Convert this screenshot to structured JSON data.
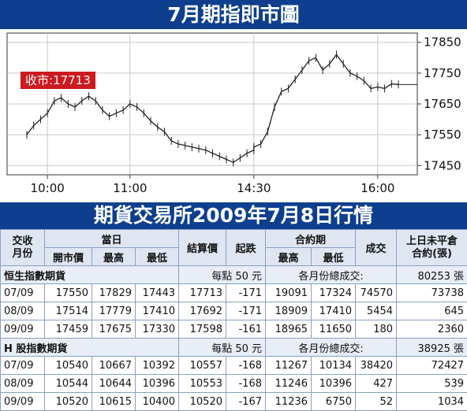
{
  "title": "7月期指即市圖",
  "subtitle": "期貨交易所2009年7月8日行情",
  "badge": "收市:17713",
  "chart_data": {
    "type": "line",
    "title": "7月期指即市圖",
    "x_ticks": [
      "10:00",
      "11:00",
      "14:30",
      "16:00"
    ],
    "y_ticks": [
      17850,
      17750,
      17650,
      17550,
      17450
    ],
    "ylim": [
      17420,
      17880
    ],
    "close": 17713,
    "series": [
      {
        "name": "",
        "values": [
          {
            "t": "09:45",
            "v": 17550
          },
          {
            "t": "09:50",
            "v": 17580
          },
          {
            "t": "09:55",
            "v": 17600
          },
          {
            "t": "10:00",
            "v": 17620
          },
          {
            "t": "10:05",
            "v": 17660
          },
          {
            "t": "10:10",
            "v": 17670
          },
          {
            "t": "10:15",
            "v": 17650
          },
          {
            "t": "10:20",
            "v": 17640
          },
          {
            "t": "10:25",
            "v": 17660
          },
          {
            "t": "10:30",
            "v": 17675
          },
          {
            "t": "10:35",
            "v": 17660
          },
          {
            "t": "10:40",
            "v": 17630
          },
          {
            "t": "10:45",
            "v": 17610
          },
          {
            "t": "10:50",
            "v": 17620
          },
          {
            "t": "10:55",
            "v": 17630
          },
          {
            "t": "11:00",
            "v": 17650
          },
          {
            "t": "11:05",
            "v": 17640
          },
          {
            "t": "11:10",
            "v": 17620
          },
          {
            "t": "11:15",
            "v": 17595
          },
          {
            "t": "11:20",
            "v": 17575
          },
          {
            "t": "11:25",
            "v": 17560
          },
          {
            "t": "11:30",
            "v": 17530
          },
          {
            "t": "11:35",
            "v": 17520
          },
          {
            "t": "11:40",
            "v": 17515
          },
          {
            "t": "11:45",
            "v": 17510
          },
          {
            "t": "11:50",
            "v": 17505
          },
          {
            "t": "11:55",
            "v": 17500
          },
          {
            "t": "12:00",
            "v": 17490
          },
          {
            "t": "12:05",
            "v": 17480
          },
          {
            "t": "12:10",
            "v": 17470
          },
          {
            "t": "12:15",
            "v": 17460
          },
          {
            "t": "12:20",
            "v": 17475
          },
          {
            "t": "12:25",
            "v": 17490
          },
          {
            "t": "12:30",
            "v": 17500
          },
          {
            "t": "14:30",
            "v": 17510
          },
          {
            "t": "14:35",
            "v": 17520
          },
          {
            "t": "14:40",
            "v": 17560
          },
          {
            "t": "14:45",
            "v": 17640
          },
          {
            "t": "14:50",
            "v": 17690
          },
          {
            "t": "14:55",
            "v": 17700
          },
          {
            "t": "15:00",
            "v": 17730
          },
          {
            "t": "15:05",
            "v": 17760
          },
          {
            "t": "15:10",
            "v": 17790
          },
          {
            "t": "15:15",
            "v": 17800
          },
          {
            "t": "15:20",
            "v": 17760
          },
          {
            "t": "15:25",
            "v": 17780
          },
          {
            "t": "15:30",
            "v": 17810
          },
          {
            "t": "15:35",
            "v": 17780
          },
          {
            "t": "15:40",
            "v": 17750
          },
          {
            "t": "15:45",
            "v": 17740
          },
          {
            "t": "15:50",
            "v": 17725
          },
          {
            "t": "15:55",
            "v": 17700
          },
          {
            "t": "16:00",
            "v": 17705
          },
          {
            "t": "16:05",
            "v": 17700
          },
          {
            "t": "16:10",
            "v": 17715
          },
          {
            "t": "16:15",
            "v": 17713
          }
        ]
      }
    ]
  },
  "table": {
    "head": {
      "col1": "交收\n月份",
      "group_day": "當日",
      "group_contract": "合約期",
      "settle": "結算價",
      "change": "起跌",
      "volume": "成交",
      "open_int": "上日未平倉\n合約(張)",
      "open": "開市價",
      "high": "最高",
      "low": "最低",
      "c_high": "最高",
      "c_low": "最低"
    },
    "groups": [
      {
        "name": "恒生指數期貨",
        "unit": "每點 50 元",
        "total_label": "各月份總成交:",
        "total": "80253 張",
        "rows": [
          [
            "07/09",
            "17550",
            "17829",
            "17443",
            "17713",
            "-171",
            "19091",
            "17324",
            "74570",
            "73738"
          ],
          [
            "08/09",
            "17514",
            "17779",
            "17410",
            "17692",
            "-171",
            "18909",
            "17410",
            "5454",
            "645"
          ],
          [
            "09/09",
            "17459",
            "17675",
            "17330",
            "17598",
            "-161",
            "18965",
            "11650",
            "180",
            "2360"
          ]
        ]
      },
      {
        "name": "H 股指數期貨",
        "unit": "每點 50 元",
        "total_label": "各月份總成交:",
        "total": "38925 張",
        "rows": [
          [
            "07/09",
            "10540",
            "10667",
            "10392",
            "10557",
            "-168",
            "11267",
            "10134",
            "38420",
            "72427"
          ],
          [
            "08/09",
            "10544",
            "10644",
            "10396",
            "10553",
            "-168",
            "11246",
            "10396",
            "427",
            "539"
          ],
          [
            "09/09",
            "10520",
            "10615",
            "10400",
            "10520",
            "-167",
            "11236",
            "6750",
            "52",
            "1034"
          ]
        ]
      }
    ]
  },
  "colors": {
    "band": "#0d3f8e",
    "badge": "#cc1a1f",
    "line": "#222222"
  }
}
